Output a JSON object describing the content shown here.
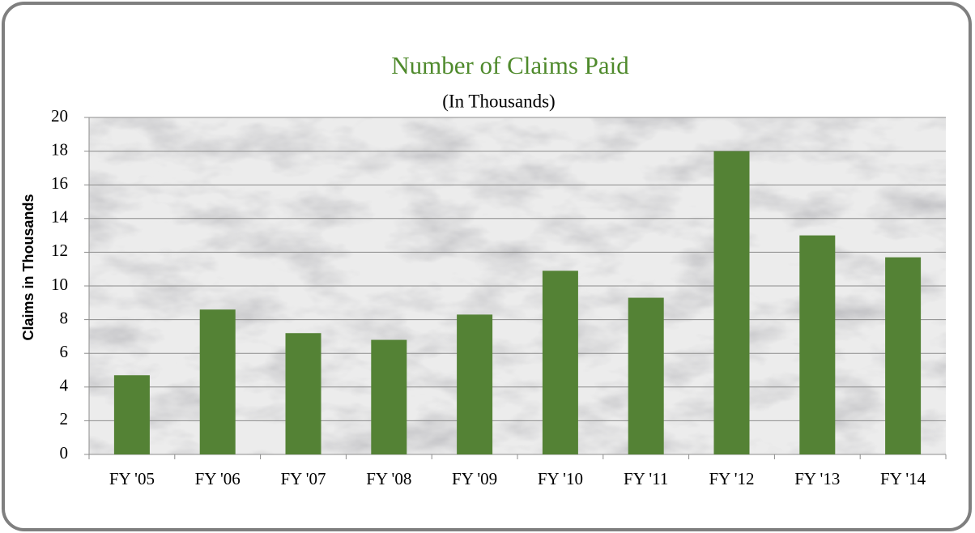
{
  "chart_data": {
    "type": "bar",
    "title": "Number of Claims Paid",
    "subtitle": "(In Thousands)",
    "y_label": "Claims in Thousands",
    "categories": [
      "FY '05",
      "FY '06",
      "FY '07",
      "FY '08",
      "FY '09",
      "FY '10",
      "FY '11",
      "FY '12",
      "FY '13",
      "FY '14"
    ],
    "values": [
      4.7,
      8.6,
      7.2,
      6.8,
      8.3,
      10.9,
      9.3,
      18,
      13,
      11.7
    ],
    "color": "#548235",
    "ylim": [
      0,
      20
    ],
    "yticks": [
      0,
      2,
      4,
      6,
      8,
      10,
      12,
      14,
      16,
      18,
      20
    ],
    "grid": true
  }
}
